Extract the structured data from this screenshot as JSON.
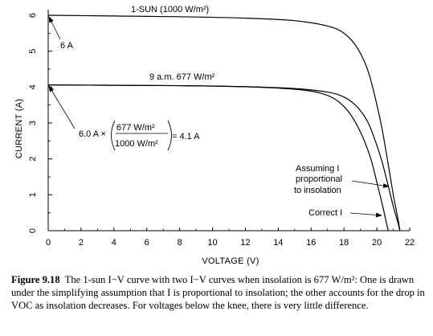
{
  "chart_data": {
    "type": "line",
    "xlabel": "VOLTAGE (V)",
    "ylabel": "CURRENT (A)",
    "xlim": [
      0,
      22
    ],
    "ylim": [
      0,
      6.2
    ],
    "x_ticks": [
      0,
      2,
      4,
      6,
      8,
      10,
      12,
      14,
      16,
      18,
      20,
      22
    ],
    "y_ticks": [
      0,
      1,
      2,
      3,
      4,
      5,
      6
    ],
    "grid": false,
    "series": [
      {
        "name": "1-SUN (1000 W/m²)",
        "x": [
          0,
          4,
          8,
          12,
          15,
          17,
          18,
          18.8,
          19.5,
          20.2,
          20.6,
          21.0,
          21.3,
          21.4
        ],
        "y": [
          6.0,
          5.98,
          5.96,
          5.92,
          5.85,
          5.7,
          5.5,
          5.1,
          4.4,
          3.1,
          2.1,
          1.0,
          0.3,
          0.0
        ]
      },
      {
        "name": "Assuming I proportional to insolation",
        "x": [
          0,
          4,
          8,
          12,
          15,
          17,
          18,
          18.8,
          19.5,
          20.2,
          20.6,
          21.0,
          21.3,
          21.4
        ],
        "y": [
          4.06,
          4.05,
          4.04,
          4.01,
          3.96,
          3.86,
          3.72,
          3.45,
          2.98,
          2.1,
          1.42,
          0.68,
          0.2,
          0.0
        ]
      },
      {
        "name": "Correct I",
        "x": [
          0,
          4,
          8,
          12,
          15,
          16.5,
          17.5,
          18.3,
          19.0,
          19.6,
          20.0,
          20.4,
          20.6,
          20.7
        ],
        "y": [
          4.06,
          4.05,
          4.04,
          4.01,
          3.94,
          3.84,
          3.65,
          3.3,
          2.75,
          2.05,
          1.35,
          0.6,
          0.18,
          0.0
        ]
      }
    ],
    "annotations": {
      "one_sun": "1-SUN (1000 W/m²)",
      "isc_one_sun": "6 A",
      "nine_am": "9 a.m. 677 W/m²",
      "calc_prefix": "6.0 A ×",
      "calc_num": "677 W/m²",
      "calc_den": "1000 W/m²",
      "calc_result": "= 4.1 A",
      "assuming_1": "Assuming I",
      "assuming_2": "proportional",
      "assuming_3": "to insolation",
      "correct": "Correct I"
    }
  },
  "caption": {
    "figure_number": "Figure 9.18",
    "text": "The 1-sun I−V curve with two I−V curves when insolation is 677 W/m²: One is drawn under the simplifying assumption that I is proportional to insolation; the other accounts for the drop in VOC as insolation decreases. For voltages below the knee, there is very little difference."
  },
  "colors": {
    "line": "#000000",
    "background": "#ffffff"
  }
}
